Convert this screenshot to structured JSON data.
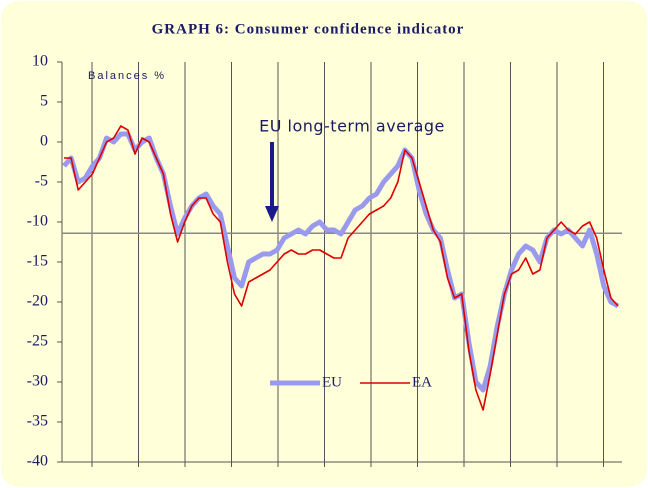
{
  "chart_data": {
    "type": "line",
    "title": "GRAPH 6: Consumer confidence indicator",
    "y_label": "Balances %",
    "annotation": "EU long-term average",
    "reference_line": -11.4,
    "ylim": [
      -40,
      10
    ],
    "yticks": [
      -40,
      -35,
      -30,
      -25,
      -20,
      -15,
      -10,
      -5,
      0,
      5,
      10
    ],
    "grid": true,
    "legend": "center",
    "series": [
      {
        "name": "EU",
        "color": "#9999ee",
        "values": [
          -3,
          -2,
          -5,
          -4.5,
          -3,
          -2,
          0.5,
          0,
          1,
          1,
          -1,
          0,
          0.5,
          -2,
          -4,
          -8,
          -11.5,
          -9.5,
          -8,
          -7,
          -6.5,
          -8,
          -9,
          -13,
          -17,
          -18,
          -15,
          -14.5,
          -14,
          -14,
          -13.5,
          -12,
          -11.5,
          -11,
          -11.5,
          -10.5,
          -10,
          -11,
          -11,
          -11.5,
          -10,
          -8.5,
          -8,
          -7,
          -6.5,
          -5,
          -4,
          -3,
          -1,
          -2,
          -6,
          -9,
          -11,
          -12,
          -16,
          -19.5,
          -19,
          -25,
          -30,
          -31,
          -28,
          -23,
          -19,
          -16,
          -14,
          -13,
          -13.5,
          -15,
          -12,
          -11,
          -11.5,
          -11,
          -12,
          -13,
          -11,
          -14,
          -18,
          -20,
          -20.5
        ]
      },
      {
        "name": "EA",
        "color": "#dd0000",
        "values": [
          -2,
          -2,
          -6,
          -5,
          -4,
          -2,
          0,
          0.5,
          2,
          1.5,
          -1.5,
          0.5,
          0,
          -2,
          -4,
          -9,
          -12.5,
          -10,
          -8,
          -7,
          -7,
          -9,
          -10,
          -15,
          -19,
          -20.5,
          -17.5,
          -17,
          -16.5,
          -16,
          -15,
          -14,
          -13.5,
          -14,
          -14,
          -13.5,
          -13.5,
          -14,
          -14.5,
          -14.5,
          -12,
          -11,
          -10,
          -9,
          -8.5,
          -8,
          -7,
          -5,
          -1,
          -2,
          -5,
          -8,
          -11,
          -12.5,
          -17,
          -19.5,
          -19,
          -26,
          -31,
          -33.5,
          -29,
          -24,
          -19,
          -16.5,
          -16,
          -14.5,
          -16.5,
          -16,
          -12,
          -11,
          -10,
          -11,
          -11.5,
          -10.5,
          -10,
          -12,
          -16,
          -19.5,
          -20.5
        ]
      }
    ]
  }
}
